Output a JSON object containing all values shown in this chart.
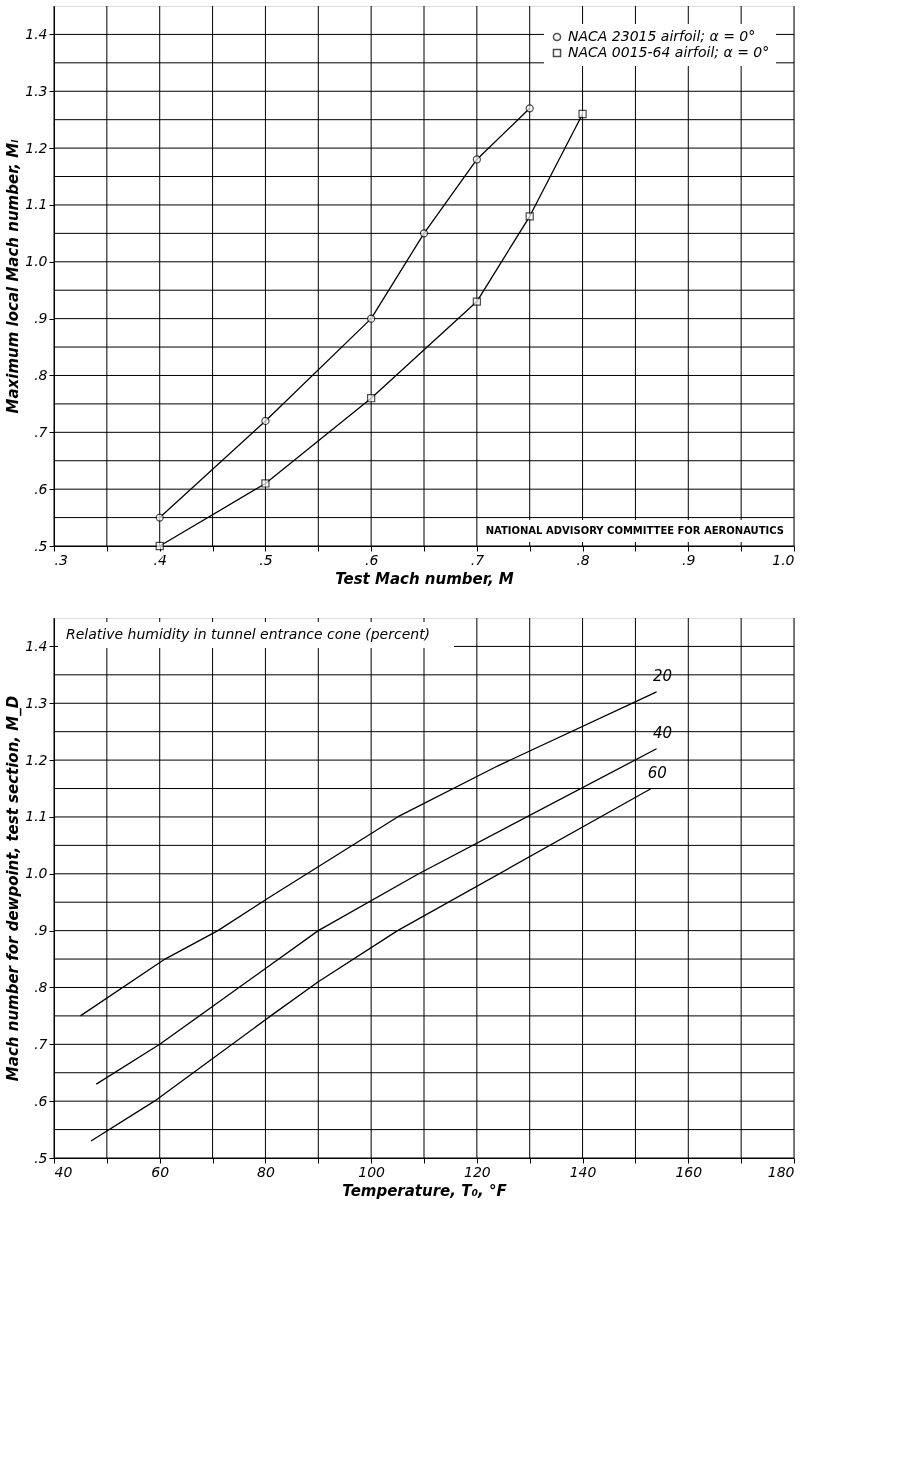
{
  "chart_data": [
    {
      "type": "line",
      "xlabel": "Test Mach number, M",
      "ylabel": "Maximum local Mach number, Mₗ",
      "xlim": [
        0.3,
        1.0
      ],
      "ylim": [
        0.5,
        1.45
      ],
      "xticks": [
        {
          "value": 0.3,
          "label": ".3"
        },
        {
          "value": 0.35,
          "label": null
        },
        {
          "value": 0.4,
          "label": ".4"
        },
        {
          "value": 0.45,
          "label": null
        },
        {
          "value": 0.5,
          "label": ".5"
        },
        {
          "value": 0.55,
          "label": null
        },
        {
          "value": 0.6,
          "label": ".6"
        },
        {
          "value": 0.65,
          "label": null
        },
        {
          "value": 0.7,
          "label": ".7"
        },
        {
          "value": 0.75,
          "label": null
        },
        {
          "value": 0.8,
          "label": ".8"
        },
        {
          "value": 0.85,
          "label": null
        },
        {
          "value": 0.9,
          "label": ".9"
        },
        {
          "value": 0.95,
          "label": null
        },
        {
          "value": 1.0,
          "label": "1.0"
        }
      ],
      "yticks": [
        {
          "value": 0.5,
          "label": ".5"
        },
        {
          "value": 0.55,
          "label": null
        },
        {
          "value": 0.6,
          "label": ".6"
        },
        {
          "value": 0.65,
          "label": null
        },
        {
          "value": 0.7,
          "label": ".7"
        },
        {
          "value": 0.75,
          "label": null
        },
        {
          "value": 0.8,
          "label": ".8"
        },
        {
          "value": 0.85,
          "label": null
        },
        {
          "value": 0.9,
          "label": ".9"
        },
        {
          "value": 0.95,
          "label": null
        },
        {
          "value": 1.0,
          "label": "1.0"
        },
        {
          "value": 1.05,
          "label": null
        },
        {
          "value": 1.1,
          "label": "1.1"
        },
        {
          "value": 1.15,
          "label": null
        },
        {
          "value": 1.2,
          "label": "1.2"
        },
        {
          "value": 1.25,
          "label": null
        },
        {
          "value": 1.3,
          "label": "1.3"
        },
        {
          "value": 1.35,
          "label": null
        },
        {
          "value": 1.4,
          "label": "1.4"
        }
      ],
      "grid": true,
      "legend": "top right",
      "line_style": "solid",
      "series": [
        {
          "name": "NACA 23015 airfoil; α = 0°",
          "color": "#000000",
          "marker": "circle",
          "x": [
            0.4,
            0.5,
            0.6,
            0.65,
            0.7,
            0.75
          ],
          "values": [
            0.55,
            0.72,
            0.9,
            1.05,
            1.18,
            1.27
          ]
        },
        {
          "name": "NACA 0015-64 airfoil; α = 0°",
          "color": "#000000",
          "marker": "square",
          "x": [
            0.4,
            0.5,
            0.6,
            0.7,
            0.75,
            0.8
          ],
          "values": [
            0.5,
            0.61,
            0.76,
            0.93,
            1.08,
            1.26
          ]
        }
      ],
      "annotations": [
        "NATIONAL ADVISORY COMMITTEE FOR AERONAUTICS"
      ]
    },
    {
      "type": "line",
      "xlabel": "Temperature, T₀, °F",
      "ylabel": "Mach number for dewpoint, test section, M_D",
      "legend_title": "Relative humidity in tunnel entrance cone (percent)",
      "xlim": [
        40,
        180
      ],
      "ylim": [
        0.5,
        1.45
      ],
      "xticks": [
        40,
        {
          "value": 50,
          "label": null
        },
        60,
        {
          "value": 70,
          "label": null
        },
        80,
        {
          "value": 90,
          "label": null
        },
        100,
        {
          "value": 110,
          "label": null
        },
        120,
        {
          "value": 130,
          "label": null
        },
        140,
        {
          "value": 150,
          "label": null
        },
        160,
        {
          "value": 170,
          "label": null
        },
        180
      ],
      "yticks": [
        {
          "value": 0.5,
          "label": ".5"
        },
        {
          "value": 0.55,
          "label": null
        },
        {
          "value": 0.6,
          "label": ".6"
        },
        {
          "value": 0.65,
          "label": null
        },
        {
          "value": 0.7,
          "label": ".7"
        },
        {
          "value": 0.75,
          "label": null
        },
        {
          "value": 0.8,
          "label": ".8"
        },
        {
          "value": 0.85,
          "label": null
        },
        {
          "value": 0.9,
          "label": ".9"
        },
        {
          "value": 0.95,
          "label": null
        },
        {
          "value": 1.0,
          "label": "1.0"
        },
        {
          "value": 1.05,
          "label": null
        },
        {
          "value": 1.1,
          "label": "1.1"
        },
        {
          "value": 1.15,
          "label": null
        },
        {
          "value": 1.2,
          "label": "1.2"
        },
        {
          "value": 1.25,
          "label": null
        },
        {
          "value": 1.3,
          "label": "1.3"
        },
        {
          "value": 1.35,
          "label": null
        },
        {
          "value": 1.4,
          "label": "1.4"
        }
      ],
      "grid": true,
      "marker": "none",
      "line_style": "solid",
      "series": [
        {
          "name": "20",
          "color": "#000000",
          "x": [
            154,
            124,
            105,
            81,
            71,
            61,
            45
          ],
          "values": [
            1.32,
            1.19,
            1.1,
            0.96,
            0.9,
            0.85,
            0.75
          ]
        },
        {
          "name": "40",
          "color": "#000000",
          "x": [
            154,
            109,
            90,
            60,
            48
          ],
          "values": [
            1.22,
            1.0,
            0.9,
            0.7,
            0.63
          ]
        },
        {
          "name": "60",
          "color": "#000000",
          "x": [
            153,
            105,
            90,
            81,
            59,
            47
          ],
          "values": [
            1.15,
            0.9,
            0.81,
            0.75,
            0.6,
            0.53
          ]
        }
      ]
    }
  ]
}
